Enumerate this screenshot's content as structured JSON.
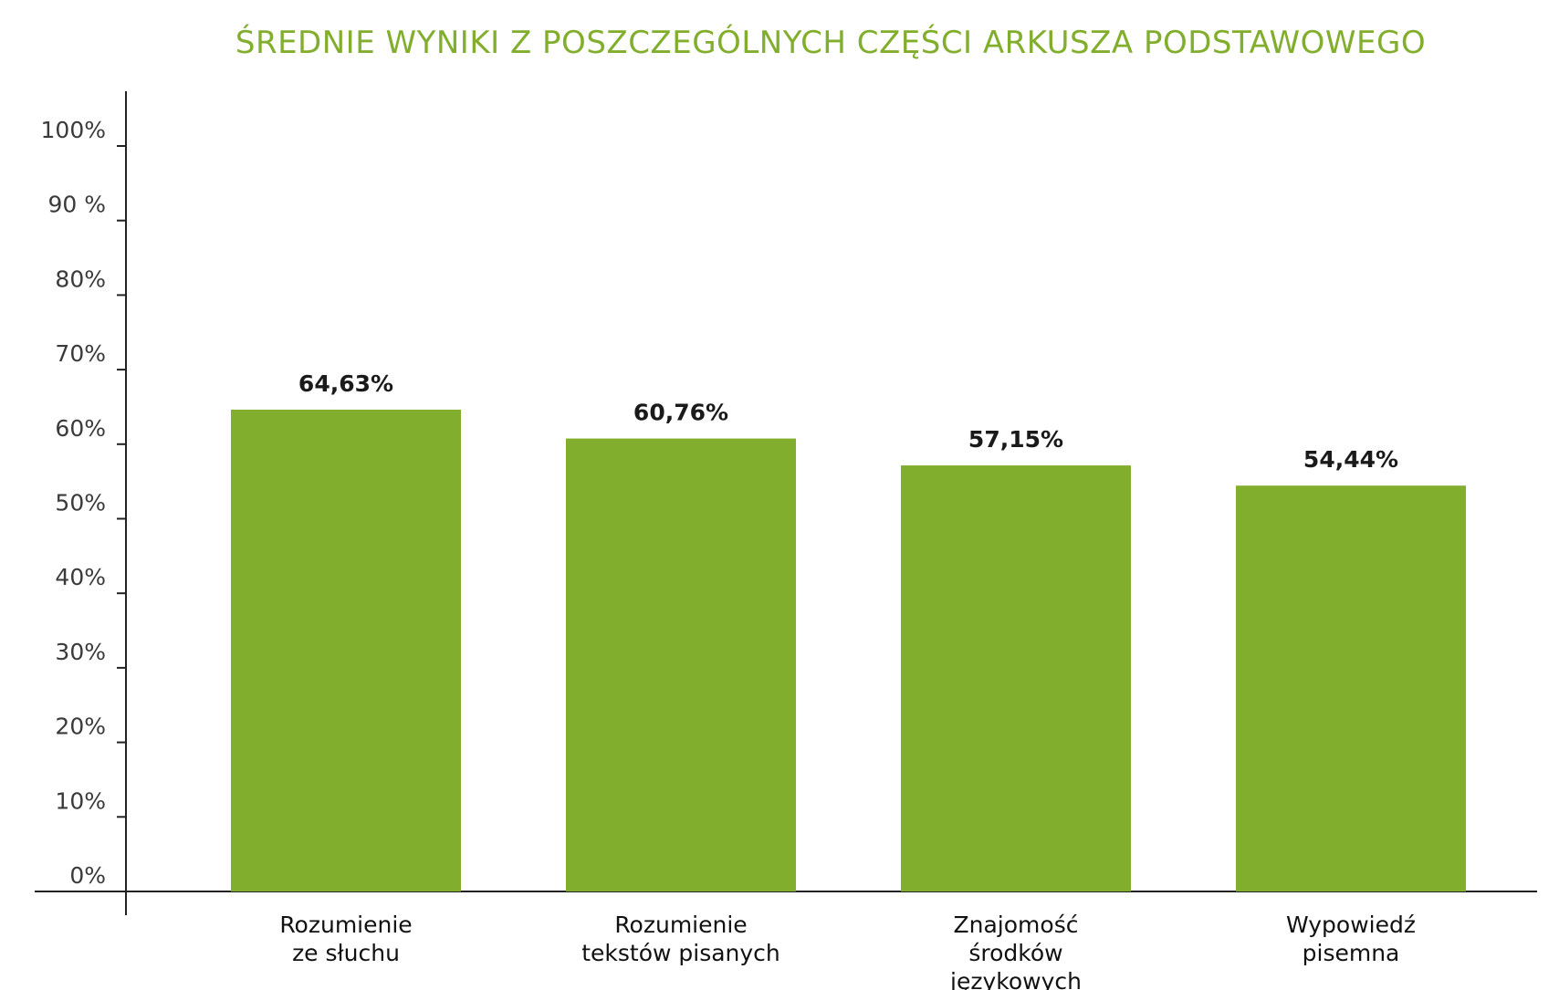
{
  "chart_data": {
    "type": "bar",
    "title": "ŚREDNIE WYNIKI Z POSZCZEGÓLNYCH CZĘŚCI ARKUSZA PODSTAWOWEGO",
    "xlabel": "",
    "ylabel": "",
    "ylim": [
      0,
      100
    ],
    "yticks": [
      0,
      10,
      20,
      30,
      40,
      50,
      60,
      70,
      80,
      90,
      100
    ],
    "ytick_labels": [
      "0%",
      "10%",
      "20%",
      "30%",
      "40%",
      "50%",
      "60%",
      "70%",
      "80%",
      "90 %",
      "100%"
    ],
    "categories": [
      [
        "Rozumienie",
        "ze słuchu"
      ],
      [
        "Rozumienie",
        "tekstów pisanych"
      ],
      [
        "Znajomość",
        "środków",
        "językowych"
      ],
      [
        "Wypowiedź",
        "pisemna"
      ]
    ],
    "values": [
      64.63,
      60.76,
      57.15,
      54.44
    ],
    "value_labels": [
      "64,63%",
      "60,76%",
      "57,15%",
      "54,44%"
    ],
    "grid": false,
    "legend": "none",
    "colors": {
      "bar": "#82ae2e",
      "title": "#82ae2e",
      "axis": "#222222"
    }
  }
}
